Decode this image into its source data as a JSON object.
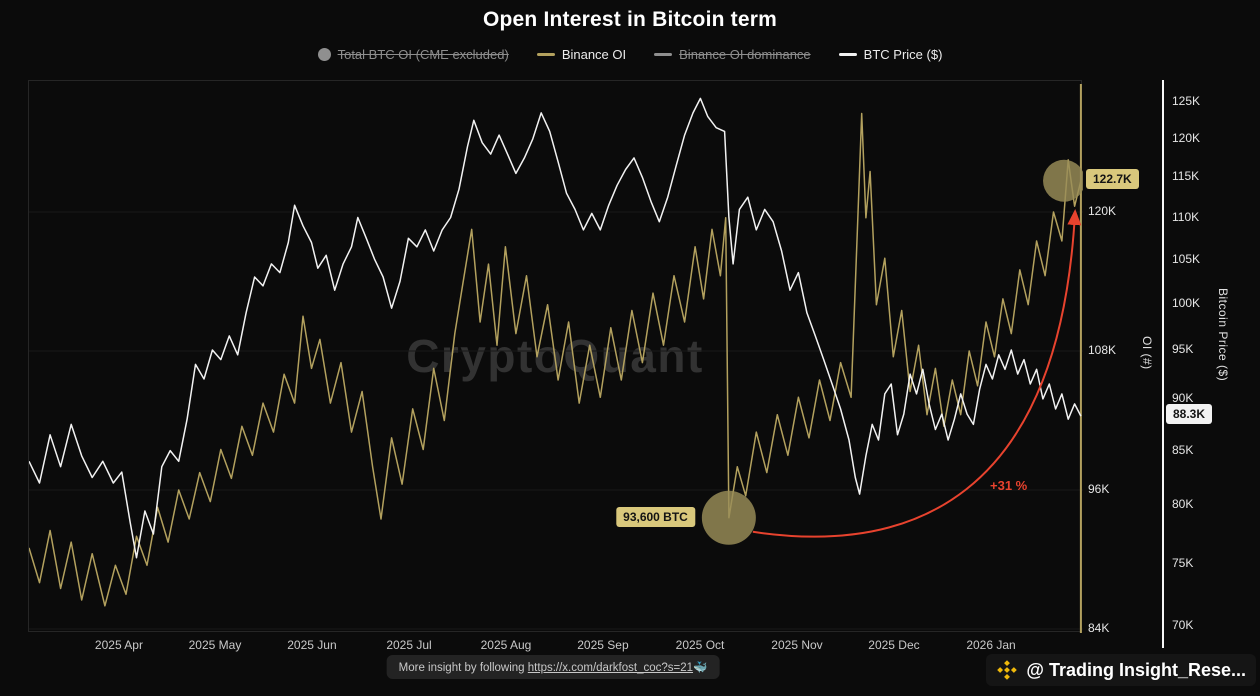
{
  "title": "Open Interest in Bitcoin term",
  "watermark": "CryptoQuant",
  "legend": [
    {
      "label": "Total BTC OI (CME excluded)",
      "marker": "circle",
      "color": "#8f8f8f",
      "strikethrough": true
    },
    {
      "label": "Binance OI",
      "marker": "line",
      "color": "#b3a15e",
      "strikethrough": false
    },
    {
      "label": "Binance OI dominance",
      "marker": "line",
      "color": "#8f8f8f",
      "strikethrough": true
    },
    {
      "label": "BTC Price ($)",
      "marker": "line",
      "color": "#f2f2f2",
      "strikethrough": false
    }
  ],
  "axes": {
    "oi": {
      "label": "OI (#)",
      "ticks": [
        "120K",
        "108K",
        "96K",
        "84K"
      ],
      "tick_values": [
        120,
        108,
        96,
        84
      ]
    },
    "price": {
      "label": "Bitcoin Price ($)",
      "ticks": [
        "125K",
        "120K",
        "115K",
        "110K",
        "105K",
        "100K",
        "95K",
        "90K",
        "85K",
        "80K",
        "75K",
        "70K"
      ],
      "tick_values": [
        125,
        120,
        115,
        110,
        105,
        100,
        95,
        90,
        85,
        80,
        75,
        70
      ]
    },
    "x": {
      "ticks": [
        "2025 Apr",
        "2025 May",
        "2025 Jun",
        "2025 Jul",
        "2025 Aug",
        "2025 Sep",
        "2025 Oct",
        "2025 Nov",
        "2025 Dec",
        "2026 Jan"
      ],
      "positions": [
        0.0863,
        0.1774,
        0.2694,
        0.3615,
        0.4535,
        0.5455,
        0.6376,
        0.7296,
        0.8216,
        0.9137
      ]
    }
  },
  "colors": {
    "background": "#0b0b0b",
    "binance_oi": "#b3a15e",
    "btc_price": "#f2f2f2",
    "muted": "#8d8d8d",
    "annotation_bg": "#d9c87c",
    "highlight_circle": "#9a8e58",
    "arrow": "#e8432e",
    "binance_gold": "#F0B90B",
    "watermark": "#323232"
  },
  "footer": {
    "text_prefix": "More insight by following ",
    "link": "https://x.com/darkfost_coc?s=21",
    "emoji": "🐳"
  },
  "attribution": {
    "handle": "@ Trading Insight_Rese..."
  },
  "chart_data": {
    "type": "line",
    "title": "Open Interest in Bitcoin term",
    "x_axis": {
      "range": "2025 Mar – 2026 Feb",
      "tick_labels": [
        "2025 Apr",
        "2025 May",
        "2025 Jun",
        "2025 Jul",
        "2025 Aug",
        "2025 Sep",
        "2025 Oct",
        "2025 Nov",
        "2025 Dec",
        "2026 Jan"
      ],
      "tick_positions": [
        0.0863,
        0.1774,
        0.2694,
        0.3615,
        0.4535,
        0.5455,
        0.6376,
        0.7296,
        0.8216,
        0.9137
      ]
    },
    "oi_axis": {
      "label": "OI (#)",
      "scale": "linear",
      "unit": "K BTC",
      "ticks": [
        120,
        108,
        96,
        84
      ],
      "range": [
        82.3,
        131.3
      ]
    },
    "price_axis": {
      "label": "Bitcoin Price ($)",
      "scale": "log",
      "unit": "K USD",
      "ticks": [
        125,
        120,
        115,
        110,
        105,
        100,
        95,
        90,
        85,
        80,
        75,
        70
      ],
      "range": [
        68.2,
        127.9
      ]
    },
    "series": [
      {
        "name": "Binance OI",
        "axis": "oi",
        "color": "#b3a15e",
        "unit": "K BTC",
        "points": [
          [
            0.0,
            91.0
          ],
          [
            0.01,
            88.0
          ],
          [
            0.02,
            92.5
          ],
          [
            0.03,
            87.5
          ],
          [
            0.04,
            91.5
          ],
          [
            0.05,
            86.5
          ],
          [
            0.06,
            90.5
          ],
          [
            0.072,
            86.0
          ],
          [
            0.082,
            89.5
          ],
          [
            0.092,
            87.0
          ],
          [
            0.102,
            92.0
          ],
          [
            0.112,
            89.5
          ],
          [
            0.122,
            94.5
          ],
          [
            0.132,
            91.5
          ],
          [
            0.142,
            96.0
          ],
          [
            0.152,
            93.5
          ],
          [
            0.162,
            97.5
          ],
          [
            0.172,
            95.0
          ],
          [
            0.182,
            99.5
          ],
          [
            0.192,
            97.0
          ],
          [
            0.202,
            101.5
          ],
          [
            0.212,
            99.0
          ],
          [
            0.222,
            103.5
          ],
          [
            0.232,
            101.0
          ],
          [
            0.242,
            106.0
          ],
          [
            0.252,
            103.5
          ],
          [
            0.26,
            111.0
          ],
          [
            0.268,
            106.5
          ],
          [
            0.276,
            109.0
          ],
          [
            0.286,
            103.5
          ],
          [
            0.296,
            107.0
          ],
          [
            0.306,
            101.0
          ],
          [
            0.316,
            104.5
          ],
          [
            0.326,
            98.0
          ],
          [
            0.334,
            93.5
          ],
          [
            0.344,
            100.5
          ],
          [
            0.354,
            96.5
          ],
          [
            0.364,
            103.0
          ],
          [
            0.374,
            99.5
          ],
          [
            0.384,
            106.5
          ],
          [
            0.394,
            102.0
          ],
          [
            0.404,
            109.5
          ],
          [
            0.412,
            114.0
          ],
          [
            0.42,
            118.5
          ],
          [
            0.428,
            110.5
          ],
          [
            0.436,
            115.5
          ],
          [
            0.444,
            108.5
          ],
          [
            0.452,
            117.0
          ],
          [
            0.462,
            109.5
          ],
          [
            0.472,
            114.5
          ],
          [
            0.482,
            107.5
          ],
          [
            0.492,
            112.0
          ],
          [
            0.502,
            105.5
          ],
          [
            0.512,
            110.5
          ],
          [
            0.522,
            103.5
          ],
          [
            0.532,
            108.5
          ],
          [
            0.542,
            104.0
          ],
          [
            0.552,
            110.0
          ],
          [
            0.562,
            105.5
          ],
          [
            0.572,
            111.5
          ],
          [
            0.582,
            107.0
          ],
          [
            0.592,
            113.0
          ],
          [
            0.602,
            108.5
          ],
          [
            0.612,
            114.5
          ],
          [
            0.622,
            110.5
          ],
          [
            0.632,
            117.0
          ],
          [
            0.64,
            112.5
          ],
          [
            0.648,
            118.5
          ],
          [
            0.656,
            114.5
          ],
          [
            0.661,
            119.5
          ],
          [
            0.664,
            93.6
          ],
          [
            0.672,
            98.0
          ],
          [
            0.68,
            95.5
          ],
          [
            0.69,
            101.0
          ],
          [
            0.7,
            97.5
          ],
          [
            0.71,
            102.5
          ],
          [
            0.72,
            99.0
          ],
          [
            0.73,
            104.0
          ],
          [
            0.74,
            100.5
          ],
          [
            0.75,
            105.5
          ],
          [
            0.76,
            102.0
          ],
          [
            0.77,
            107.0
          ],
          [
            0.78,
            104.0
          ],
          [
            0.786,
            118.5
          ],
          [
            0.79,
            128.5
          ],
          [
            0.794,
            119.5
          ],
          [
            0.798,
            123.5
          ],
          [
            0.804,
            112.0
          ],
          [
            0.812,
            116.0
          ],
          [
            0.82,
            107.5
          ],
          [
            0.828,
            111.5
          ],
          [
            0.836,
            104.5
          ],
          [
            0.844,
            108.5
          ],
          [
            0.852,
            102.5
          ],
          [
            0.86,
            106.5
          ],
          [
            0.868,
            101.5
          ],
          [
            0.876,
            105.5
          ],
          [
            0.884,
            102.5
          ],
          [
            0.892,
            108.0
          ],
          [
            0.9,
            105.0
          ],
          [
            0.908,
            110.5
          ],
          [
            0.916,
            107.5
          ],
          [
            0.924,
            112.5
          ],
          [
            0.932,
            109.5
          ],
          [
            0.94,
            115.0
          ],
          [
            0.948,
            112.0
          ],
          [
            0.956,
            117.5
          ],
          [
            0.964,
            114.5
          ],
          [
            0.972,
            120.0
          ],
          [
            0.98,
            117.5
          ],
          [
            0.986,
            124.5
          ],
          [
            0.992,
            120.5
          ],
          [
            0.998,
            122.7
          ]
        ]
      },
      {
        "name": "BTC Price ($)",
        "axis": "price",
        "color": "#f2f2f2",
        "unit": "K USD",
        "points": [
          [
            0.0,
            84.0
          ],
          [
            0.01,
            82.0
          ],
          [
            0.02,
            86.5
          ],
          [
            0.03,
            83.5
          ],
          [
            0.04,
            87.5
          ],
          [
            0.05,
            84.5
          ],
          [
            0.06,
            82.5
          ],
          [
            0.07,
            84.0
          ],
          [
            0.08,
            82.0
          ],
          [
            0.088,
            83.0
          ],
          [
            0.096,
            78.5
          ],
          [
            0.102,
            75.5
          ],
          [
            0.11,
            79.5
          ],
          [
            0.118,
            77.5
          ],
          [
            0.126,
            83.5
          ],
          [
            0.134,
            85.0
          ],
          [
            0.142,
            84.0
          ],
          [
            0.15,
            88.0
          ],
          [
            0.158,
            93.5
          ],
          [
            0.166,
            92.0
          ],
          [
            0.174,
            95.0
          ],
          [
            0.182,
            94.0
          ],
          [
            0.19,
            96.5
          ],
          [
            0.198,
            94.5
          ],
          [
            0.206,
            99.0
          ],
          [
            0.214,
            103.0
          ],
          [
            0.222,
            102.0
          ],
          [
            0.23,
            104.5
          ],
          [
            0.238,
            103.5
          ],
          [
            0.246,
            107.0
          ],
          [
            0.252,
            111.5
          ],
          [
            0.26,
            109.0
          ],
          [
            0.268,
            107.0
          ],
          [
            0.274,
            104.0
          ],
          [
            0.282,
            105.5
          ],
          [
            0.29,
            101.5
          ],
          [
            0.298,
            104.5
          ],
          [
            0.306,
            106.5
          ],
          [
            0.312,
            110.0
          ],
          [
            0.32,
            107.5
          ],
          [
            0.328,
            105.0
          ],
          [
            0.336,
            103.0
          ],
          [
            0.344,
            99.5
          ],
          [
            0.352,
            102.5
          ],
          [
            0.36,
            107.5
          ],
          [
            0.368,
            106.5
          ],
          [
            0.376,
            108.5
          ],
          [
            0.384,
            106.0
          ],
          [
            0.392,
            108.5
          ],
          [
            0.4,
            110.0
          ],
          [
            0.408,
            113.5
          ],
          [
            0.416,
            119.0
          ],
          [
            0.422,
            122.5
          ],
          [
            0.43,
            119.5
          ],
          [
            0.438,
            118.0
          ],
          [
            0.446,
            120.5
          ],
          [
            0.454,
            118.0
          ],
          [
            0.462,
            115.5
          ],
          [
            0.47,
            117.5
          ],
          [
            0.478,
            120.0
          ],
          [
            0.486,
            123.5
          ],
          [
            0.494,
            121.0
          ],
          [
            0.502,
            117.0
          ],
          [
            0.51,
            113.0
          ],
          [
            0.518,
            111.0
          ],
          [
            0.526,
            108.5
          ],
          [
            0.534,
            110.5
          ],
          [
            0.542,
            108.5
          ],
          [
            0.55,
            111.5
          ],
          [
            0.558,
            114.0
          ],
          [
            0.566,
            116.0
          ],
          [
            0.574,
            117.5
          ],
          [
            0.582,
            115.0
          ],
          [
            0.59,
            112.0
          ],
          [
            0.598,
            109.5
          ],
          [
            0.606,
            112.5
          ],
          [
            0.614,
            116.5
          ],
          [
            0.622,
            120.5
          ],
          [
            0.63,
            123.5
          ],
          [
            0.637,
            125.5
          ],
          [
            0.644,
            123.0
          ],
          [
            0.652,
            121.5
          ],
          [
            0.66,
            121.0
          ],
          [
            0.664,
            110.0
          ],
          [
            0.668,
            104.5
          ],
          [
            0.674,
            111.0
          ],
          [
            0.682,
            112.5
          ],
          [
            0.69,
            108.5
          ],
          [
            0.698,
            111.0
          ],
          [
            0.706,
            109.5
          ],
          [
            0.714,
            106.0
          ],
          [
            0.722,
            101.5
          ],
          [
            0.73,
            103.5
          ],
          [
            0.738,
            99.0
          ],
          [
            0.746,
            96.5
          ],
          [
            0.754,
            94.0
          ],
          [
            0.762,
            91.5
          ],
          [
            0.77,
            89.0
          ],
          [
            0.778,
            86.0
          ],
          [
            0.784,
            82.5
          ],
          [
            0.788,
            81.0
          ],
          [
            0.794,
            84.5
          ],
          [
            0.8,
            87.5
          ],
          [
            0.806,
            86.0
          ],
          [
            0.812,
            90.5
          ],
          [
            0.818,
            91.5
          ],
          [
            0.824,
            86.5
          ],
          [
            0.83,
            88.5
          ],
          [
            0.836,
            92.5
          ],
          [
            0.842,
            90.5
          ],
          [
            0.848,
            93.0
          ],
          [
            0.854,
            89.5
          ],
          [
            0.86,
            87.0
          ],
          [
            0.866,
            88.5
          ],
          [
            0.872,
            86.0
          ],
          [
            0.878,
            88.0
          ],
          [
            0.884,
            90.5
          ],
          [
            0.89,
            88.5
          ],
          [
            0.896,
            87.5
          ],
          [
            0.902,
            91.0
          ],
          [
            0.908,
            93.5
          ],
          [
            0.914,
            92.0
          ],
          [
            0.92,
            94.5
          ],
          [
            0.926,
            93.0
          ],
          [
            0.932,
            95.0
          ],
          [
            0.938,
            92.5
          ],
          [
            0.944,
            94.0
          ],
          [
            0.95,
            91.5
          ],
          [
            0.956,
            93.0
          ],
          [
            0.962,
            90.0
          ],
          [
            0.968,
            91.5
          ],
          [
            0.974,
            89.0
          ],
          [
            0.98,
            90.5
          ],
          [
            0.986,
            88.0
          ],
          [
            0.992,
            89.5
          ],
          [
            0.998,
            88.3
          ]
        ]
      }
    ],
    "annotations": {
      "low_point": {
        "series": "Binance OI",
        "t": 0.664,
        "value_k": 93.6,
        "label": "93,600 BTC"
      },
      "current_oi": {
        "series": "Binance OI",
        "t": 0.982,
        "value_k": 122.7,
        "label": "122.7K"
      },
      "current_price": {
        "series": "BTC Price ($)",
        "value_k": 88.3,
        "label": "88.3K"
      },
      "change": {
        "label": "+31 %",
        "from_label": "93,600 BTC",
        "to_label": "122.7K"
      },
      "cursor_t": 0.998
    },
    "legend_position": "top",
    "grid": "off"
  }
}
